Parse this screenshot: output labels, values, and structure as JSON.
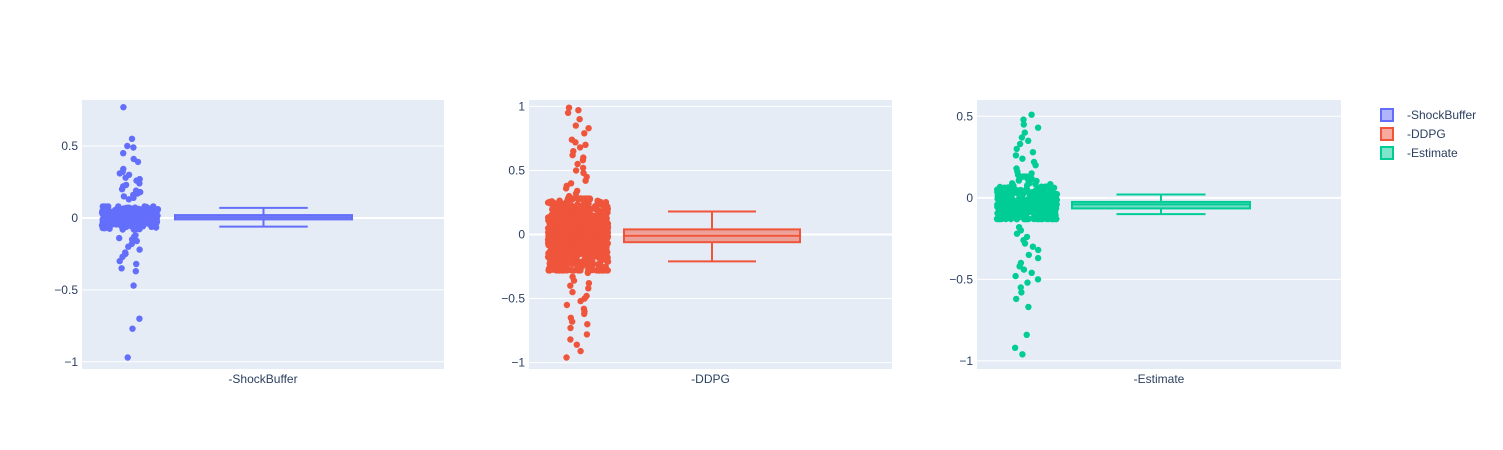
{
  "chart_data": [
    {
      "type": "box",
      "category": "-ShockBuffer",
      "color": "#636efa",
      "ylim": [
        -1.05,
        0.82
      ],
      "yticks": [
        -1,
        -0.5,
        0,
        0.5
      ],
      "ytick_labels": [
        "−1",
        "−0.5",
        "0",
        "0.5"
      ],
      "box": {
        "lower_fence": -0.06,
        "q1": -0.01,
        "median": 0.005,
        "q3": 0.02,
        "upper_fence": 0.07
      },
      "points": {
        "count": 320,
        "core_spread": 0.08,
        "outliers": [
          0.77,
          0.55,
          0.5,
          0.49,
          0.45,
          0.41,
          0.39,
          0.34,
          0.32,
          0.31,
          0.3,
          0.28,
          0.27,
          0.26,
          0.24,
          0.23,
          0.22,
          0.2,
          0.19,
          0.18,
          0.17,
          0.16,
          0.15,
          0.14,
          0.13,
          -0.12,
          -0.13,
          -0.14,
          -0.15,
          -0.16,
          -0.18,
          -0.2,
          -0.22,
          -0.24,
          -0.25,
          -0.27,
          -0.3,
          -0.32,
          -0.35,
          -0.37,
          -0.47,
          -0.7,
          -0.77,
          -0.97
        ]
      }
    },
    {
      "type": "box",
      "category": "-DDPG",
      "color": "#ef553b",
      "ylim": [
        -1.05,
        1.05
      ],
      "yticks": [
        -1,
        -0.5,
        0,
        0.5,
        1
      ],
      "ytick_labels": [
        "−1",
        "−0.5",
        "0",
        "0.5",
        "1"
      ],
      "box": {
        "lower_fence": -0.21,
        "q1": -0.06,
        "median": -0.01,
        "q3": 0.04,
        "upper_fence": 0.18
      },
      "points": {
        "count": 1200,
        "core_spread": 0.28,
        "outliers": [
          0.99,
          0.97,
          0.95,
          0.9,
          0.85,
          0.83,
          0.79,
          0.74,
          0.72,
          0.7,
          0.68,
          0.65,
          0.62,
          0.6,
          0.58,
          0.55,
          0.52,
          0.5,
          0.48,
          0.45,
          0.42,
          0.4,
          0.38,
          0.36,
          0.34,
          0.32,
          0.3,
          -0.3,
          -0.33,
          -0.36,
          -0.38,
          -0.4,
          -0.42,
          -0.45,
          -0.48,
          -0.5,
          -0.52,
          -0.55,
          -0.58,
          -0.6,
          -0.62,
          -0.65,
          -0.68,
          -0.7,
          -0.73,
          -0.78,
          -0.82,
          -0.86,
          -0.91,
          -0.96
        ]
      }
    },
    {
      "type": "box",
      "category": "-Estimate",
      "color": "#00cc96",
      "ylim": [
        -1.05,
        0.6
      ],
      "yticks": [
        -1,
        -0.5,
        0,
        0.5
      ],
      "ytick_labels": [
        "−1",
        "−0.5",
        "0",
        "0.5"
      ],
      "box": {
        "lower_fence": -0.1,
        "q1": -0.065,
        "median": -0.04,
        "q3": -0.025,
        "upper_fence": 0.02
      },
      "points": {
        "count": 420,
        "core_spread": 0.13,
        "outliers": [
          0.51,
          0.48,
          0.45,
          0.43,
          0.4,
          0.37,
          0.35,
          0.33,
          0.3,
          0.28,
          0.26,
          0.24,
          0.22,
          0.2,
          0.18,
          0.16,
          0.15,
          0.14,
          -0.18,
          -0.2,
          -0.22,
          -0.24,
          -0.26,
          -0.28,
          -0.3,
          -0.32,
          -0.35,
          -0.37,
          -0.4,
          -0.42,
          -0.44,
          -0.46,
          -0.48,
          -0.5,
          -0.52,
          -0.55,
          -0.58,
          -0.62,
          -0.67,
          -0.84,
          -0.92,
          -0.96
        ]
      }
    }
  ],
  "legend": {
    "placement": "top-right",
    "items": [
      {
        "label": "-ShockBuffer",
        "color": "#636efa"
      },
      {
        "label": "-DDPG",
        "color": "#ef553b"
      },
      {
        "label": "-Estimate",
        "color": "#00cc96"
      }
    ]
  },
  "colors": {
    "plot_bg": "#e5ecf6",
    "grid": "#ffffff",
    "tick_text": "#2a3f5f"
  }
}
